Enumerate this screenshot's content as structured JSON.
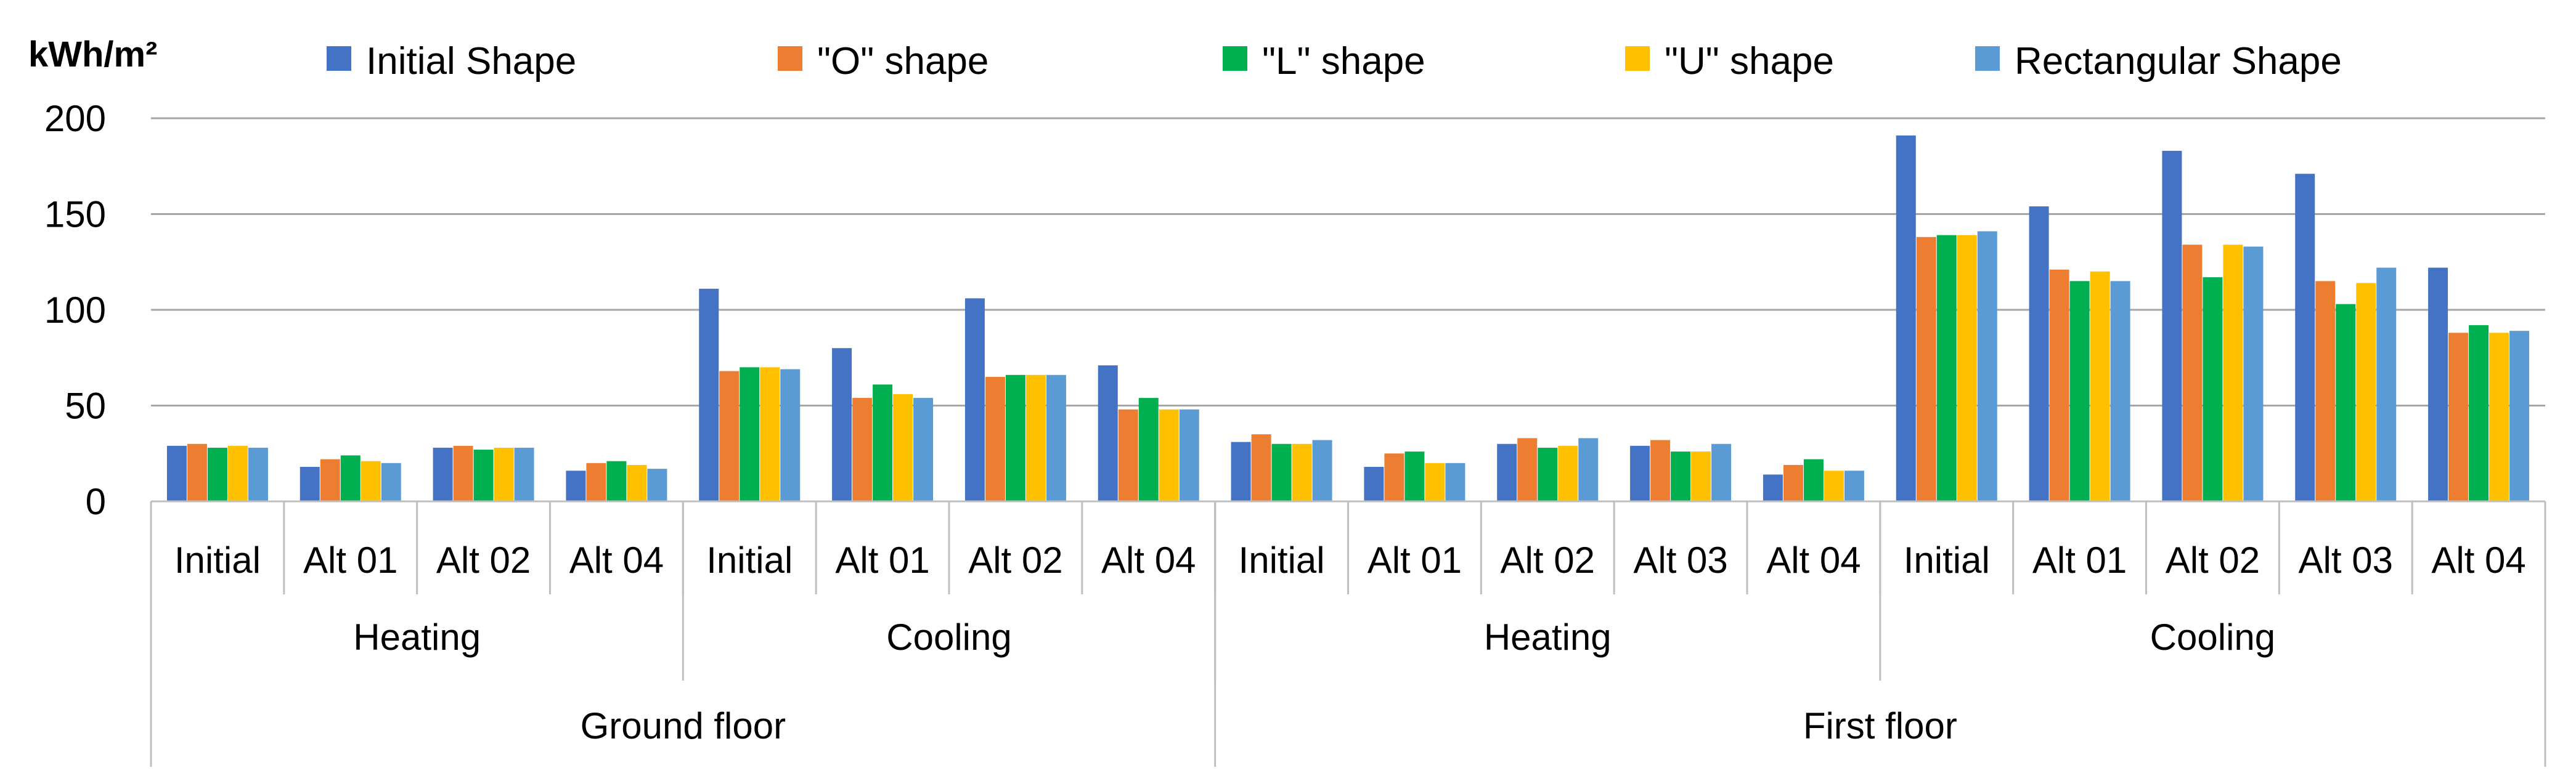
{
  "chart_data": {
    "type": "bar",
    "title": "",
    "ylabel": "kWh/m²",
    "xlabel": "",
    "ylim": [
      0,
      200
    ],
    "yticks": [
      0,
      50,
      100,
      150,
      200
    ],
    "grid": true,
    "legend_position": "top",
    "categories": [
      "Initial",
      "Alt 01",
      "Alt 02",
      "Alt 04",
      "Initial",
      "Alt 01",
      "Alt 02",
      "Alt 04",
      "Initial",
      "Alt 01",
      "Alt 02",
      "Alt 03",
      "Alt 04",
      "Initial",
      "Alt 01",
      "Alt 02",
      "Alt 03",
      "Alt 04"
    ],
    "groups_level2": [
      {
        "label": "Heating",
        "count": 4
      },
      {
        "label": "Cooling",
        "count": 4
      },
      {
        "label": "Heating",
        "count": 5
      },
      {
        "label": "Cooling",
        "count": 5
      }
    ],
    "groups_level1": [
      {
        "label": "Ground floor",
        "count": 8
      },
      {
        "label": "First floor",
        "count": 10
      }
    ],
    "series": [
      {
        "name": "Initial Shape",
        "color": "#4472C4",
        "values": [
          29,
          18,
          28,
          16,
          111,
          80,
          106,
          71,
          31,
          18,
          30,
          29,
          14,
          191,
          154,
          183,
          171,
          122
        ]
      },
      {
        "name": "\"O\" shape",
        "color": "#ED7D31",
        "values": [
          30,
          22,
          29,
          20,
          68,
          54,
          65,
          48,
          35,
          25,
          33,
          32,
          19,
          138,
          121,
          134,
          115,
          88
        ]
      },
      {
        "name": "\"L\" shape",
        "color": "#00B050",
        "values": [
          28,
          24,
          27,
          21,
          70,
          61,
          66,
          54,
          30,
          26,
          28,
          26,
          22,
          139,
          115,
          117,
          103,
          92
        ]
      },
      {
        "name": "\"U\" shape",
        "color": "#FFC000",
        "values": [
          29,
          21,
          28,
          19,
          70,
          56,
          66,
          48,
          30,
          20,
          29,
          26,
          16,
          139,
          120,
          134,
          114,
          88
        ]
      },
      {
        "name": "Rectangular Shape",
        "color": "#5B9BD5",
        "values": [
          28,
          20,
          28,
          17,
          69,
          54,
          66,
          48,
          32,
          20,
          33,
          30,
          16,
          141,
          115,
          133,
          122,
          89
        ]
      }
    ]
  }
}
